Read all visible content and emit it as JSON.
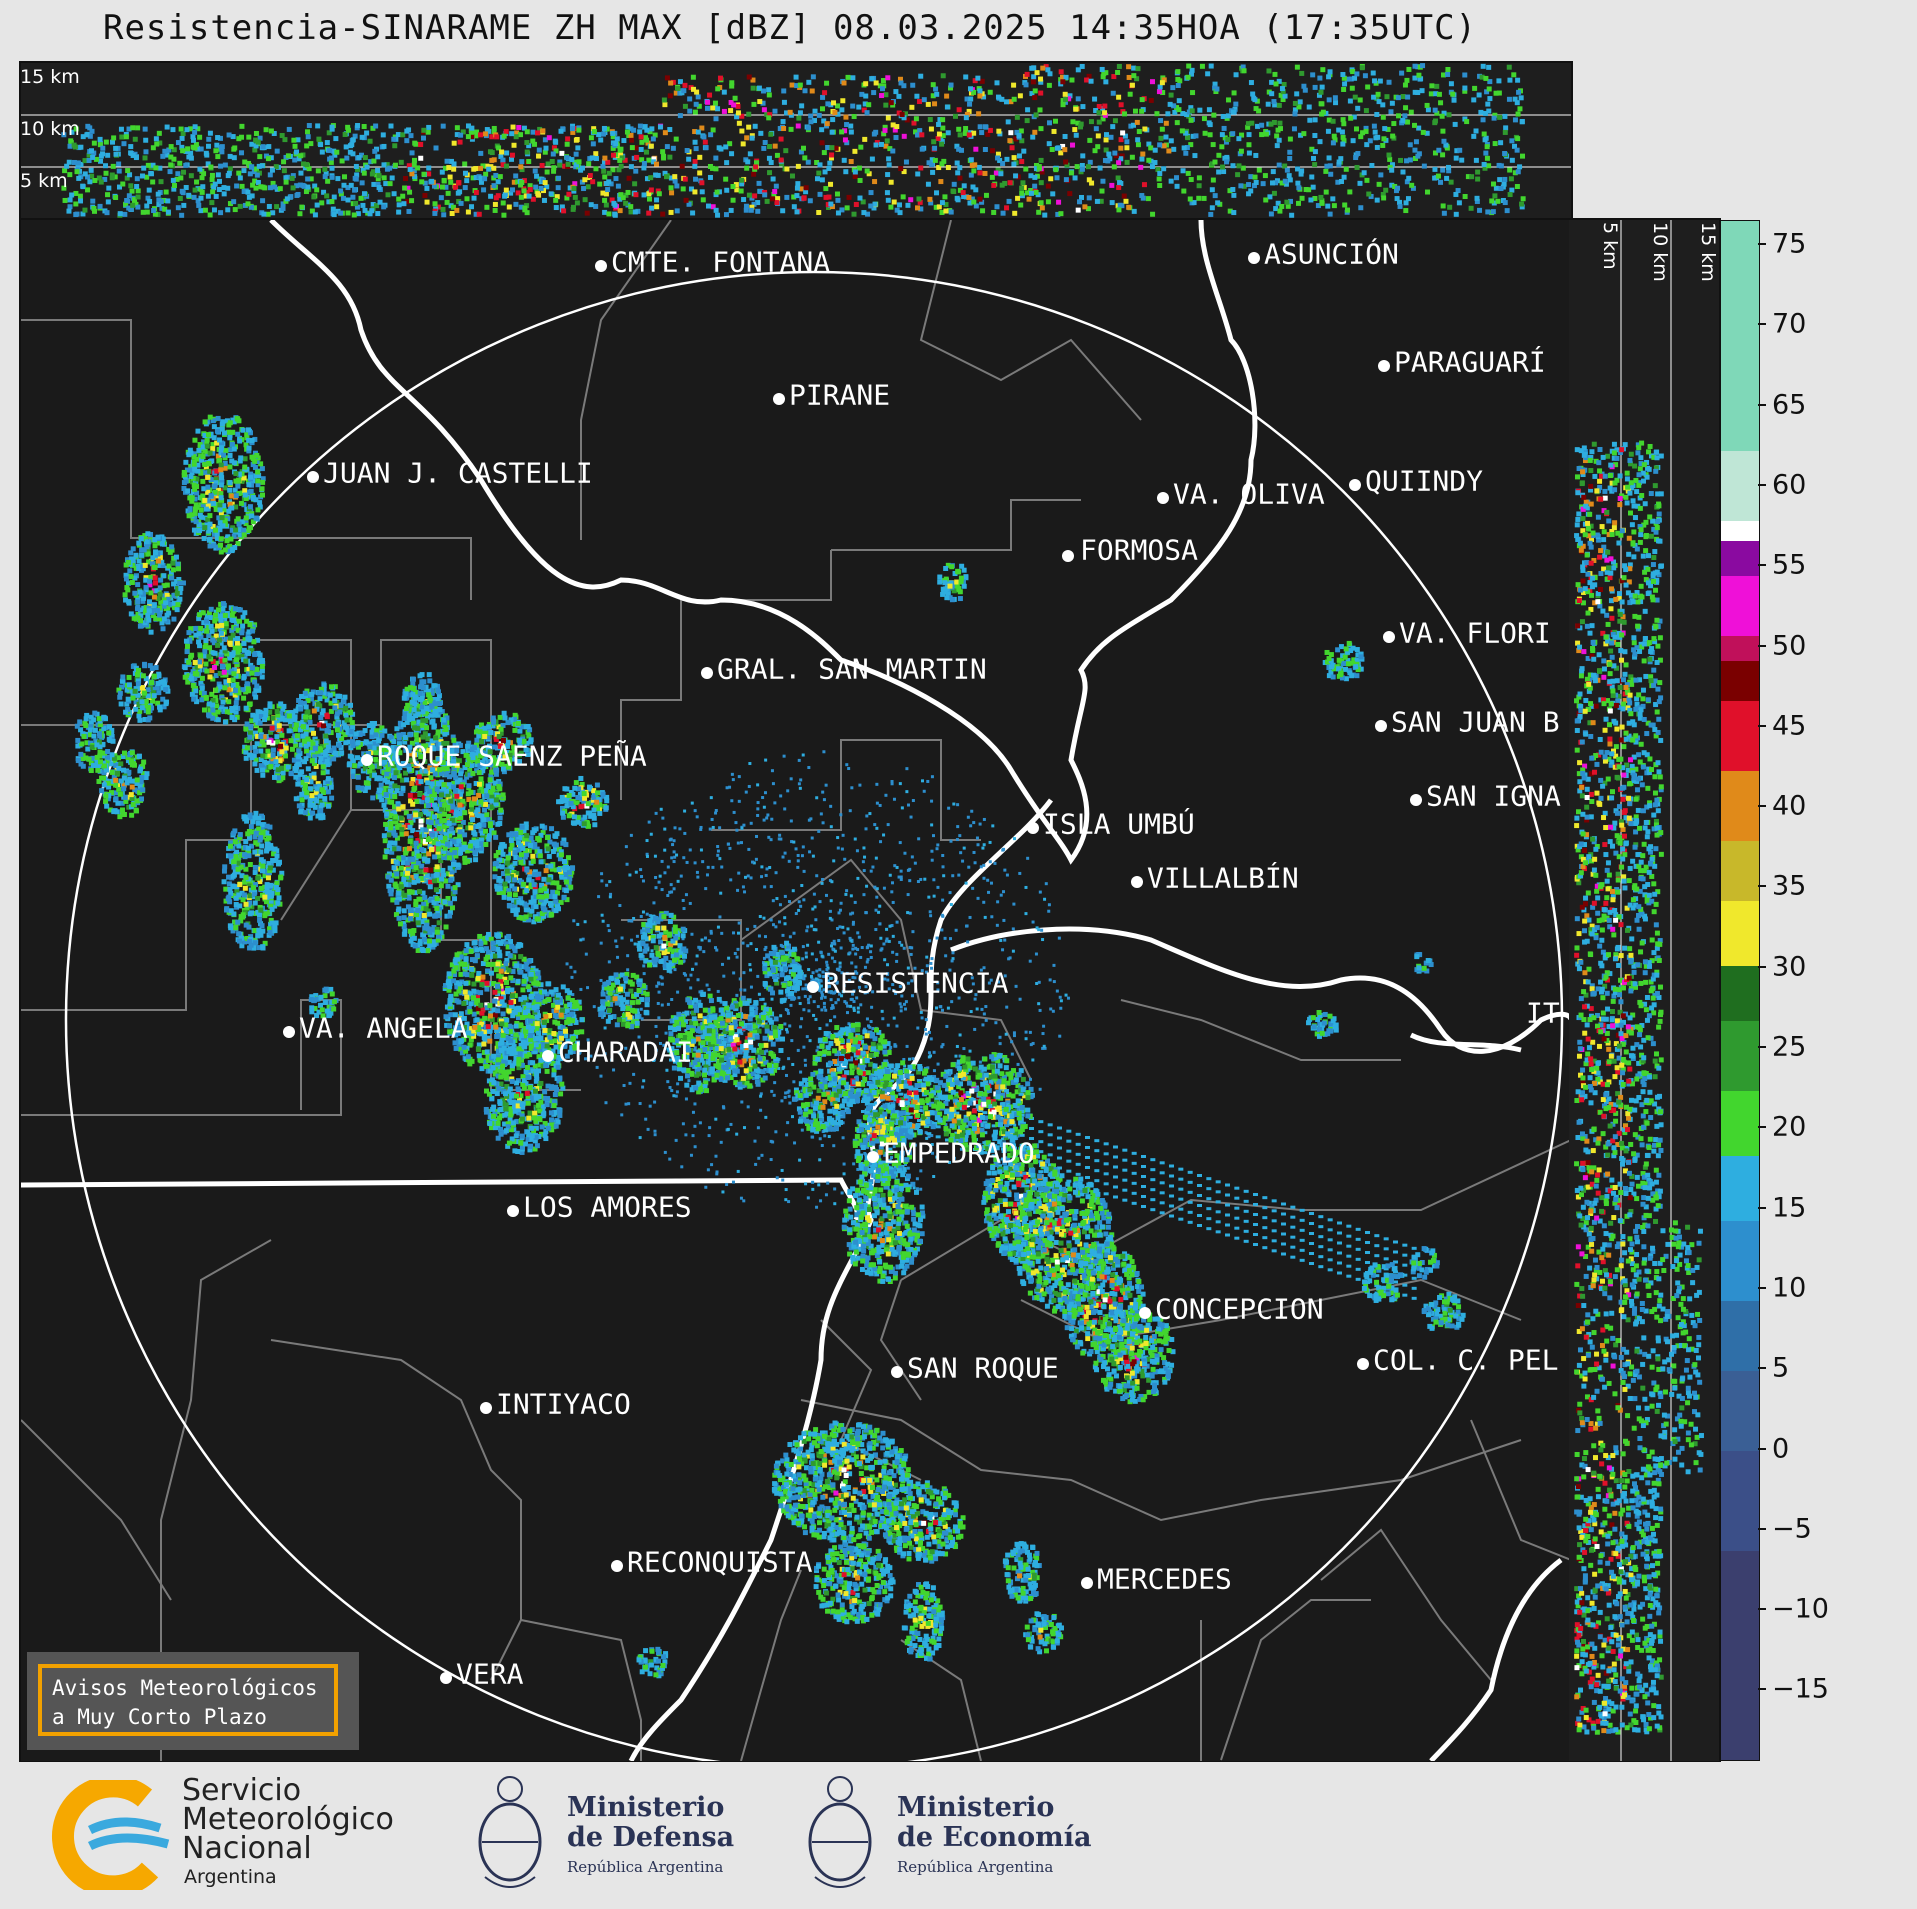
{
  "title": "Resistencia-SINARAME ZH MAX [dBZ] 08.03.2025 14:35HOA (17:35UTC)",
  "top_panel": {
    "altitude_labels": [
      "15 km",
      "10 km",
      "5 km"
    ]
  },
  "side_panel": {
    "altitude_labels": [
      "5 km",
      "10 km",
      "15 km"
    ]
  },
  "cities": [
    {
      "name": "CMTE. FONTANA",
      "label": "CMTE. FONTANA"
    },
    {
      "name": "ASUNCIÓN",
      "label": "ASUNCIÓN"
    },
    {
      "name": "PIRANE",
      "label": "PIRANE"
    },
    {
      "name": "PARAGUARÍ",
      "label": "PARAGUARÍ"
    },
    {
      "name": "JUAN J. CASTELLI",
      "label": "JUAN J. CASTELLI"
    },
    {
      "name": "VA. OLIVA",
      "label": "VA. OLIVA"
    },
    {
      "name": "QUIINDY",
      "label": "QUIINDY"
    },
    {
      "name": "FORMOSA",
      "label": "FORMOSA"
    },
    {
      "name": "VA. FLORIDA",
      "label": "VA. FLORI"
    },
    {
      "name": "GRAL. SAN MARTIN",
      "label": "GRAL. SAN MARTIN"
    },
    {
      "name": "SAN JUAN B",
      "label": "SAN JUAN B"
    },
    {
      "name": "ROQUE SAENZ PEÑA",
      "label": "ROQUE SAENZ PEÑA"
    },
    {
      "name": "SAN IGNACIO",
      "label": "SAN IGNA"
    },
    {
      "name": "ISLA UMBÚ",
      "label": "ISLA UMBÚ"
    },
    {
      "name": "VILLALBÍN",
      "label": "VILLALBÍN"
    },
    {
      "name": "RESISTENCIA",
      "label": "RESISTENCIA"
    },
    {
      "name": "VA. ANGELA",
      "label": "VA. ANGELA"
    },
    {
      "name": "CHARADAI",
      "label": "CHARADAI"
    },
    {
      "name": "ITATÍ",
      "label": "IT"
    },
    {
      "name": "EMPEDRADO",
      "label": "EMPEDRADO"
    },
    {
      "name": "LOS AMORES",
      "label": "LOS AMORES"
    },
    {
      "name": "CONCEPCION",
      "label": "CONCEPCION"
    },
    {
      "name": "SAN ROQUE",
      "label": "SAN ROQUE"
    },
    {
      "name": "COL. C. PELLEGRINI",
      "label": "COL. C. PEL"
    },
    {
      "name": "INTIYACO",
      "label": "INTIYACO"
    },
    {
      "name": "RECONQUISTA",
      "label": "RECONQUISTA"
    },
    {
      "name": "MERCEDES",
      "label": "MERCEDES"
    },
    {
      "name": "VERA",
      "label": "VERA"
    }
  ],
  "colorbar": {
    "unit": "dBZ",
    "ticks": [
      "75",
      "70",
      "65",
      "60",
      "55",
      "50",
      "45",
      "40",
      "35",
      "30",
      "25",
      "20",
      "15",
      "10",
      "5",
      "0",
      "−5",
      "−10",
      "−15"
    ],
    "colors": {
      "low": "#3b3f6e",
      "blue": "#2d8fce",
      "cyan": "#2eaee0",
      "green": "#42d62e",
      "darkgreen": "#1f6e1f",
      "yellow": "#f0e82c",
      "orange": "#e08a1a",
      "red": "#e0102a",
      "darkred": "#7a0000",
      "magenta": "#ef10d8",
      "purple": "#8a0aa0",
      "white": "#ffffff",
      "mint": "#7fd8b8"
    }
  },
  "warning_box": {
    "line1": "Avisos Meteorológicos",
    "line2": "a Muy Corto Plazo",
    "border_color": "#f2a100"
  },
  "footer": {
    "smn": {
      "line1": "Servicio",
      "line2": "Meteorológico",
      "line3": "Nacional",
      "line4": "Argentina"
    },
    "defensa": {
      "title1": "Ministerio",
      "title2": "de Defensa",
      "sub": "República Argentina"
    },
    "economia": {
      "title1": "Ministerio",
      "title2": "de Economía",
      "sub": "República Argentina"
    }
  }
}
